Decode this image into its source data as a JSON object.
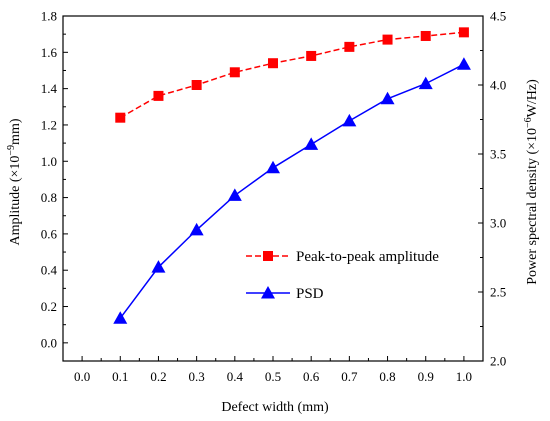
{
  "chart_data": {
    "type": "line",
    "x": [
      0.1,
      0.2,
      0.3,
      0.4,
      0.5,
      0.6,
      0.7,
      0.8,
      0.9,
      1.0
    ],
    "xlabel": "Defect width (mm)",
    "xlim": [
      -0.05,
      1.05
    ],
    "xticks": [
      "0.0",
      "0.1",
      "0.2",
      "0.3",
      "0.4",
      "0.5",
      "0.6",
      "0.7",
      "0.8",
      "0.9",
      "1.0"
    ],
    "ylabel_left_prefix": "Amplitude (×10",
    "ylabel_left_exp": "−9",
    "ylabel_left_suffix": "mm)",
    "ylim_left": [
      -0.1,
      1.8
    ],
    "yticks_left": [
      "0.0",
      "0.2",
      "0.4",
      "0.6",
      "0.8",
      "1.0",
      "1.2",
      "1.4",
      "1.6",
      "1.8"
    ],
    "ylabel_right_prefix": "Power spectral density (×10",
    "ylabel_right_exp": "−6",
    "ylabel_right_suffix": "W/Hz)",
    "ylim_right": [
      2.0,
      4.5
    ],
    "yticks_right": [
      "2.0",
      "2.5",
      "3.0",
      "3.5",
      "4.0",
      "4.5"
    ],
    "series": [
      {
        "name": "Peak-to-peak amplitude",
        "axis": "left",
        "color": "#ff0000",
        "marker": "square",
        "line": "dashed",
        "values": [
          1.24,
          1.36,
          1.42,
          1.49,
          1.54,
          1.58,
          1.63,
          1.67,
          1.69,
          1.71
        ]
      },
      {
        "name": "PSD",
        "axis": "right",
        "color": "#0000ff",
        "marker": "triangle",
        "line": "solid",
        "values": [
          2.31,
          2.68,
          2.95,
          3.2,
          3.4,
          3.57,
          3.74,
          3.9,
          4.01,
          4.15
        ]
      }
    ],
    "legend": [
      {
        "label": "Peak-to-peak amplitude",
        "color": "#ff0000",
        "marker": "square",
        "line": "dashed"
      },
      {
        "label": "PSD",
        "color": "#0000ff",
        "marker": "triangle",
        "line": "solid"
      }
    ],
    "legend_position": "center-right",
    "grid": false
  }
}
